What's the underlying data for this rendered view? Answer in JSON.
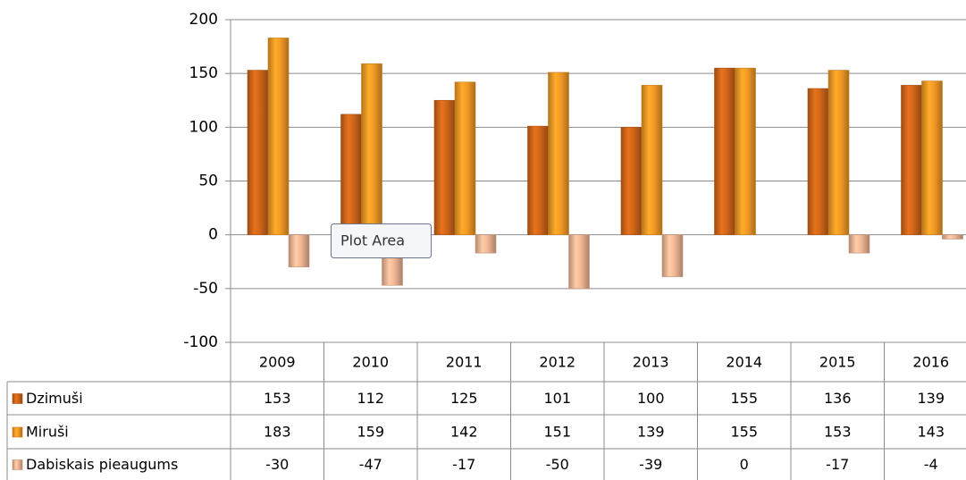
{
  "chart_data": {
    "type": "bar",
    "categories": [
      "2009",
      "2010",
      "2011",
      "2012",
      "2013",
      "2014",
      "2015",
      "2016"
    ],
    "series": [
      {
        "name": "Dzimuši",
        "color": "#d0661a",
        "values": [
          153,
          112,
          125,
          101,
          100,
          155,
          136,
          139
        ]
      },
      {
        "name": "Miruši",
        "color": "#f39a25",
        "values": [
          183,
          159,
          142,
          151,
          139,
          155,
          153,
          143
        ]
      },
      {
        "name": "Dabiskais pieaugums",
        "color": "#f2b796",
        "values": [
          -30,
          -47,
          -17,
          -50,
          -39,
          0,
          -17,
          -4
        ]
      }
    ],
    "ylim": [
      -100,
      200
    ],
    "yticks": [
      -100,
      -50,
      0,
      50,
      100,
      150,
      200
    ],
    "grid": true,
    "tooltip": "Plot Area"
  }
}
